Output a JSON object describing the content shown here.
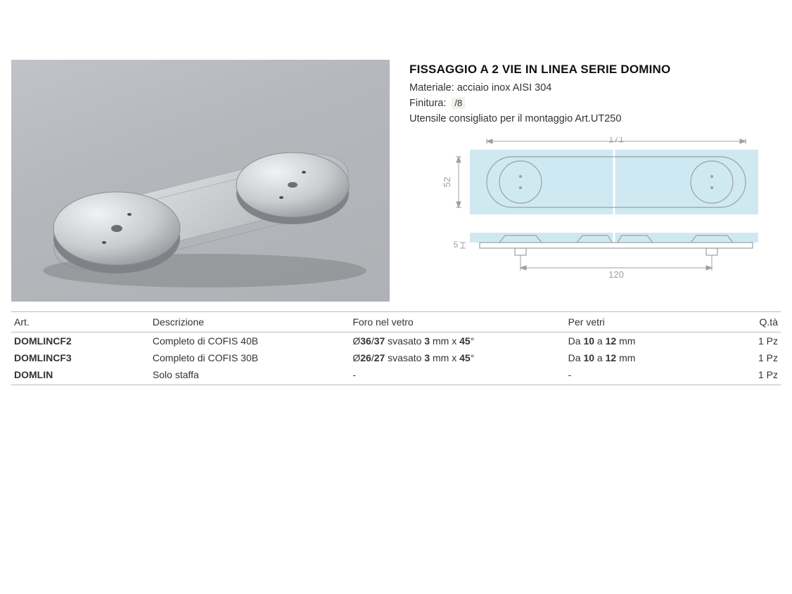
{
  "product": {
    "title": "FISSAGGIO A 2 VIE IN LINEA SERIE DOMINO",
    "material_label": "Materiale:",
    "material_value": "acciaio inox AISI 304",
    "finish_label": "Finitura:",
    "finish_value": "/8",
    "tool_note": "Utensile consigliato per il montaggio Art.UT250"
  },
  "drawing": {
    "dim_width": "171",
    "dim_height": "52",
    "dim_centers": "120",
    "dim_thickness": "5",
    "glass_color": "#cfe9f2",
    "stroke_color": "#9aa0a6",
    "dim_text_color": "#9aa0a6"
  },
  "photo": {
    "bg_gradient_from": "#c0c3c7",
    "bg_gradient_to": "#aeb1b5",
    "metal_light": "#e4e5e7",
    "metal_mid": "#c7c9cc",
    "metal_dark": "#8f9296"
  },
  "table": {
    "columns": [
      "Art.",
      "Descrizione",
      "Foro nel vetro",
      "Per vetri",
      "Q.tà"
    ],
    "col_widths": [
      "18%",
      "26%",
      "28%",
      "18%",
      "10%"
    ],
    "rows": [
      {
        "art": "DOMLINCF2",
        "desc": "Completo di COFIS 40B",
        "foro_prefix": "Ø",
        "foro_b1": "36",
        "foro_sep": "/",
        "foro_b2": "37",
        "foro_mid": " svasato ",
        "foro_b3": "3",
        "foro_tail1": " mm x ",
        "foro_b4": "45",
        "foro_tail2": "°",
        "vetri_prefix": "Da ",
        "vetri_b1": "10",
        "vetri_mid": " a ",
        "vetri_b2": "12",
        "vetri_tail": " mm",
        "qta": "1 Pz"
      },
      {
        "art": "DOMLINCF3",
        "desc": "Completo di COFIS 30B",
        "foro_prefix": "Ø",
        "foro_b1": "26",
        "foro_sep": "/",
        "foro_b2": "27",
        "foro_mid": " svasato ",
        "foro_b3": "3",
        "foro_tail1": " mm x ",
        "foro_b4": "45",
        "foro_tail2": "°",
        "vetri_prefix": "Da ",
        "vetri_b1": "10",
        "vetri_mid": " a ",
        "vetri_b2": "12",
        "vetri_tail": " mm",
        "qta": "1 Pz"
      },
      {
        "art": "DOMLIN",
        "desc": "Solo staffa",
        "foro_plain": "-",
        "vetri_plain": "-",
        "qta": "1 Pz"
      }
    ]
  }
}
